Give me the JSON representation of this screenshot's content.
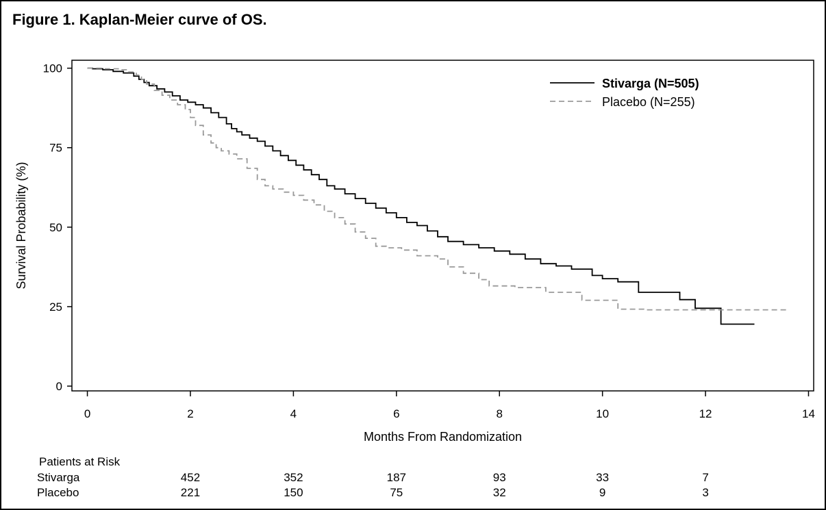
{
  "figure_title": "Figure 1. Kaplan-Meier curve of OS.",
  "chart_data": {
    "type": "line",
    "title": "Kaplan-Meier curve of OS.",
    "xlabel": "Months From Randomization",
    "ylabel": "Survival Probability (%)",
    "xlim": [
      -0.3,
      14.1
    ],
    "ylim": [
      -1.5,
      102.5
    ],
    "xticks": [
      0,
      2,
      4,
      6,
      8,
      10,
      12,
      14
    ],
    "yticks": [
      0,
      25,
      50,
      75,
      100
    ],
    "xtick_labels": [
      "0",
      "2",
      "4",
      "6",
      "8",
      "10",
      "12",
      "14"
    ],
    "ytick_labels": [
      "0",
      "25",
      "50",
      "75",
      "100"
    ],
    "grid": false,
    "legend_position": "top-right",
    "series": [
      {
        "name": "Stivarga (N=505)",
        "color": "#000000",
        "style": "solid",
        "step": true,
        "x": [
          0,
          0.1,
          0.3,
          0.5,
          0.7,
          0.9,
          1.0,
          1.1,
          1.2,
          1.35,
          1.5,
          1.65,
          1.8,
          1.95,
          2.1,
          2.25,
          2.4,
          2.55,
          2.7,
          2.8,
          2.9,
          3.0,
          3.15,
          3.3,
          3.45,
          3.6,
          3.75,
          3.9,
          4.05,
          4.2,
          4.35,
          4.5,
          4.65,
          4.8,
          5.0,
          5.2,
          5.4,
          5.6,
          5.8,
          6.0,
          6.2,
          6.4,
          6.6,
          6.8,
          7.0,
          7.3,
          7.6,
          7.9,
          8.2,
          8.5,
          8.8,
          9.1,
          9.4,
          9.8,
          10.0,
          10.3,
          10.7,
          11.5,
          11.8,
          12.3,
          12.95
        ],
        "y": [
          100,
          99.8,
          99.5,
          99,
          98.5,
          97.5,
          96.5,
          95.5,
          94.5,
          93.5,
          92.5,
          91.3,
          90,
          89.3,
          88.5,
          87.5,
          86,
          84.5,
          82.5,
          81,
          80,
          79,
          78,
          77,
          75.5,
          74,
          72.5,
          71,
          69.5,
          68,
          66.5,
          65,
          63,
          62,
          60.5,
          59,
          57.5,
          56,
          54.5,
          53,
          51.5,
          50.5,
          48.8,
          47,
          45.5,
          44.5,
          43.5,
          42.5,
          41.5,
          40,
          38.5,
          37.8,
          36.8,
          34.8,
          33.8,
          32.8,
          29.5,
          27.2,
          24.5,
          19.5,
          19.5
        ]
      },
      {
        "name": "Placebo (N=255)",
        "color": "#999999",
        "style": "dashed",
        "step": true,
        "x": [
          0,
          0.3,
          0.6,
          0.8,
          0.95,
          1.05,
          1.15,
          1.3,
          1.45,
          1.6,
          1.75,
          1.9,
          2.0,
          2.1,
          2.25,
          2.4,
          2.5,
          2.6,
          2.75,
          2.9,
          3.1,
          3.3,
          3.45,
          3.6,
          3.8,
          4.0,
          4.2,
          4.4,
          4.6,
          4.8,
          5.0,
          5.2,
          5.4,
          5.6,
          5.8,
          6.1,
          6.4,
          6.8,
          7.0,
          7.3,
          7.6,
          7.8,
          8.3,
          8.9,
          9.6,
          10.3,
          10.8,
          13.6
        ],
        "y": [
          100,
          99.8,
          99.5,
          98.8,
          97.8,
          96.5,
          95,
          93,
          91.5,
          90,
          88.5,
          87,
          84.5,
          82,
          79,
          76.5,
          75,
          74,
          73,
          71.5,
          68.5,
          65,
          63,
          62,
          61,
          60,
          58.5,
          57,
          55,
          53,
          51,
          48.5,
          46.5,
          44,
          43.5,
          42.8,
          41,
          40,
          37.5,
          35.5,
          33.5,
          31.5,
          31,
          29.5,
          27,
          24.2,
          24,
          24
        ]
      }
    ],
    "risk_table": {
      "header": "Patients at Risk",
      "times": [
        2,
        4,
        6,
        8,
        10,
        12
      ],
      "rows": [
        {
          "label": "Stivarga",
          "values": [
            "452",
            "352",
            "187",
            "93",
            "33",
            "7"
          ]
        },
        {
          "label": "Placebo",
          "values": [
            "221",
            "150",
            "75",
            "32",
            "9",
            "3"
          ]
        }
      ]
    }
  }
}
